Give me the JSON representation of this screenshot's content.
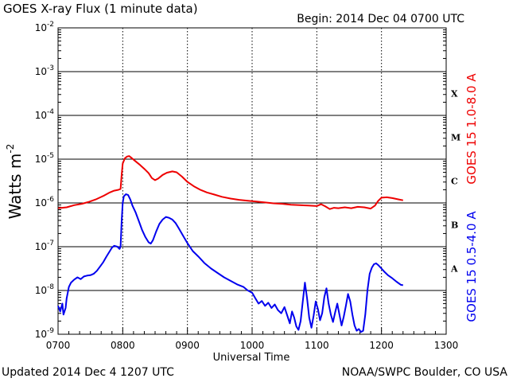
{
  "header": {
    "title": "GOES X-ray Flux (1 minute data)",
    "begin": "Begin: 2014 Dec 04 0700 UTC"
  },
  "footer": {
    "updated": "Updated 2014 Dec  4 1207 UTC",
    "credit": "NOAA/SWPC Boulder, CO USA"
  },
  "chart_data": {
    "type": "line",
    "title": "GOES X-ray Flux (1 minute data)",
    "xlabel": "Universal Time",
    "ylabel_main": "Watts m",
    "ylabel_sup": "-2",
    "y_scale": "log",
    "xlim": [
      0,
      360
    ],
    "ylim_exp": [
      -9,
      -2
    ],
    "grid": true,
    "x_ticks": [
      {
        "label": "0700",
        "t": 0
      },
      {
        "label": "0800",
        "t": 60
      },
      {
        "label": "0900",
        "t": 120
      },
      {
        "label": "1000",
        "t": 180
      },
      {
        "label": "1100",
        "t": 240
      },
      {
        "label": "1200",
        "t": 300
      },
      {
        "label": "1300",
        "t": 360
      }
    ],
    "y_ticks": [
      {
        "base": "10",
        "exp": "-9",
        "value": -9
      },
      {
        "base": "10",
        "exp": "-8",
        "value": -8
      },
      {
        "base": "10",
        "exp": "-7",
        "value": -7
      },
      {
        "base": "10",
        "exp": "-6",
        "value": -6
      },
      {
        "base": "10",
        "exp": "-5",
        "value": -5
      },
      {
        "base": "10",
        "exp": "-4",
        "value": -4
      },
      {
        "base": "10",
        "exp": "-3",
        "value": -3
      },
      {
        "base": "10",
        "exp": "-2",
        "value": -2
      }
    ],
    "flare_classes": [
      {
        "label": "A",
        "value": -7.5
      },
      {
        "label": "B",
        "value": -6.5
      },
      {
        "label": "C",
        "value": -5.5
      },
      {
        "label": "M",
        "value": -4.5
      },
      {
        "label": "X",
        "value": -3.5
      }
    ],
    "series": [
      {
        "name": "GOES 15 1.0-8.0 A",
        "color": "#ee0000",
        "points": [
          [
            0,
            -6.12
          ],
          [
            8,
            -6.1
          ],
          [
            15,
            -6.05
          ],
          [
            22,
            -6.02
          ],
          [
            28,
            -5.98
          ],
          [
            35,
            -5.92
          ],
          [
            42,
            -5.84
          ],
          [
            48,
            -5.76
          ],
          [
            52,
            -5.72
          ],
          [
            56,
            -5.7
          ],
          [
            58,
            -5.68
          ],
          [
            59,
            -5.35
          ],
          [
            60,
            -5.1
          ],
          [
            62,
            -4.98
          ],
          [
            64,
            -4.94
          ],
          [
            66,
            -4.93
          ],
          [
            68,
            -4.97
          ],
          [
            72,
            -5.05
          ],
          [
            76,
            -5.13
          ],
          [
            80,
            -5.22
          ],
          [
            84,
            -5.32
          ],
          [
            87,
            -5.43
          ],
          [
            90,
            -5.48
          ],
          [
            93,
            -5.44
          ],
          [
            97,
            -5.36
          ],
          [
            101,
            -5.31
          ],
          [
            106,
            -5.28
          ],
          [
            110,
            -5.3
          ],
          [
            115,
            -5.4
          ],
          [
            120,
            -5.52
          ],
          [
            126,
            -5.62
          ],
          [
            132,
            -5.7
          ],
          [
            138,
            -5.76
          ],
          [
            145,
            -5.81
          ],
          [
            152,
            -5.86
          ],
          [
            160,
            -5.9
          ],
          [
            168,
            -5.93
          ],
          [
            176,
            -5.95
          ],
          [
            184,
            -5.97
          ],
          [
            192,
            -5.99
          ],
          [
            200,
            -6.01
          ],
          [
            208,
            -6.02
          ],
          [
            216,
            -6.04
          ],
          [
            224,
            -6.05
          ],
          [
            232,
            -6.06
          ],
          [
            240,
            -6.07
          ],
          [
            244,
            -6.03
          ],
          [
            248,
            -6.08
          ],
          [
            252,
            -6.14
          ],
          [
            256,
            -6.11
          ],
          [
            260,
            -6.12
          ],
          [
            266,
            -6.1
          ],
          [
            272,
            -6.12
          ],
          [
            278,
            -6.09
          ],
          [
            284,
            -6.1
          ],
          [
            290,
            -6.13
          ],
          [
            294,
            -6.06
          ],
          [
            297,
            -5.95
          ],
          [
            300,
            -5.88
          ],
          [
            305,
            -5.87
          ],
          [
            310,
            -5.89
          ],
          [
            316,
            -5.92
          ],
          [
            320,
            -5.94
          ]
        ]
      },
      {
        "name": "GOES 15 0.5-4.0 A",
        "color": "#0000ee",
        "points": [
          [
            0,
            -8.35
          ],
          [
            2,
            -8.48
          ],
          [
            4,
            -8.3
          ],
          [
            5,
            -8.55
          ],
          [
            7,
            -8.4
          ],
          [
            8,
            -8.18
          ],
          [
            9,
            -8.05
          ],
          [
            10,
            -7.92
          ],
          [
            12,
            -7.82
          ],
          [
            15,
            -7.75
          ],
          [
            18,
            -7.7
          ],
          [
            21,
            -7.74
          ],
          [
            24,
            -7.68
          ],
          [
            27,
            -7.66
          ],
          [
            30,
            -7.65
          ],
          [
            33,
            -7.62
          ],
          [
            36,
            -7.55
          ],
          [
            39,
            -7.45
          ],
          [
            42,
            -7.35
          ],
          [
            45,
            -7.22
          ],
          [
            48,
            -7.1
          ],
          [
            50,
            -7.02
          ],
          [
            52,
            -6.98
          ],
          [
            55,
            -7.0
          ],
          [
            57,
            -7.05
          ],
          [
            58,
            -7.0
          ],
          [
            59,
            -6.4
          ],
          [
            60,
            -6.0
          ],
          [
            61,
            -5.85
          ],
          [
            63,
            -5.8
          ],
          [
            65,
            -5.82
          ],
          [
            67,
            -5.92
          ],
          [
            69,
            -6.06
          ],
          [
            72,
            -6.22
          ],
          [
            75,
            -6.42
          ],
          [
            78,
            -6.62
          ],
          [
            81,
            -6.78
          ],
          [
            84,
            -6.9
          ],
          [
            86,
            -6.93
          ],
          [
            88,
            -6.85
          ],
          [
            91,
            -6.65
          ],
          [
            94,
            -6.48
          ],
          [
            97,
            -6.38
          ],
          [
            100,
            -6.32
          ],
          [
            103,
            -6.34
          ],
          [
            106,
            -6.38
          ],
          [
            109,
            -6.46
          ],
          [
            112,
            -6.58
          ],
          [
            116,
            -6.75
          ],
          [
            120,
            -6.92
          ],
          [
            125,
            -7.1
          ],
          [
            130,
            -7.22
          ],
          [
            136,
            -7.38
          ],
          [
            142,
            -7.5
          ],
          [
            148,
            -7.6
          ],
          [
            154,
            -7.7
          ],
          [
            160,
            -7.78
          ],
          [
            166,
            -7.86
          ],
          [
            172,
            -7.92
          ],
          [
            176,
            -8.0
          ],
          [
            180,
            -8.05
          ],
          [
            183,
            -8.18
          ],
          [
            186,
            -8.3
          ],
          [
            189,
            -8.24
          ],
          [
            192,
            -8.35
          ],
          [
            195,
            -8.28
          ],
          [
            198,
            -8.4
          ],
          [
            201,
            -8.32
          ],
          [
            204,
            -8.45
          ],
          [
            207,
            -8.52
          ],
          [
            210,
            -8.38
          ],
          [
            213,
            -8.6
          ],
          [
            215,
            -8.75
          ],
          [
            217,
            -8.48
          ],
          [
            219,
            -8.62
          ],
          [
            221,
            -8.82
          ],
          [
            223,
            -8.9
          ],
          [
            225,
            -8.7
          ],
          [
            227,
            -8.25
          ],
          [
            229,
            -7.82
          ],
          [
            231,
            -8.18
          ],
          [
            233,
            -8.62
          ],
          [
            235,
            -8.85
          ],
          [
            237,
            -8.58
          ],
          [
            239,
            -8.25
          ],
          [
            241,
            -8.42
          ],
          [
            243,
            -8.68
          ],
          [
            245,
            -8.52
          ],
          [
            247,
            -8.15
          ],
          [
            249,
            -7.95
          ],
          [
            251,
            -8.3
          ],
          [
            253,
            -8.55
          ],
          [
            255,
            -8.72
          ],
          [
            257,
            -8.5
          ],
          [
            259,
            -8.3
          ],
          [
            261,
            -8.55
          ],
          [
            263,
            -8.8
          ],
          [
            265,
            -8.6
          ],
          [
            267,
            -8.35
          ],
          [
            269,
            -8.08
          ],
          [
            271,
            -8.25
          ],
          [
            273,
            -8.55
          ],
          [
            275,
            -8.8
          ],
          [
            277,
            -8.92
          ],
          [
            279,
            -8.88
          ],
          [
            281,
            -8.95
          ],
          [
            283,
            -8.92
          ],
          [
            285,
            -8.55
          ],
          [
            287,
            -8.0
          ],
          [
            289,
            -7.62
          ],
          [
            291,
            -7.48
          ],
          [
            293,
            -7.4
          ],
          [
            295,
            -7.38
          ],
          [
            297,
            -7.42
          ],
          [
            300,
            -7.5
          ],
          [
            303,
            -7.58
          ],
          [
            306,
            -7.65
          ],
          [
            310,
            -7.72
          ],
          [
            314,
            -7.8
          ],
          [
            318,
            -7.87
          ],
          [
            320,
            -7.88
          ]
        ]
      }
    ]
  },
  "colors": {
    "grid": "#000000",
    "axis": "#000000",
    "red_series": "#ee0000",
    "blue_series": "#0000ee"
  }
}
